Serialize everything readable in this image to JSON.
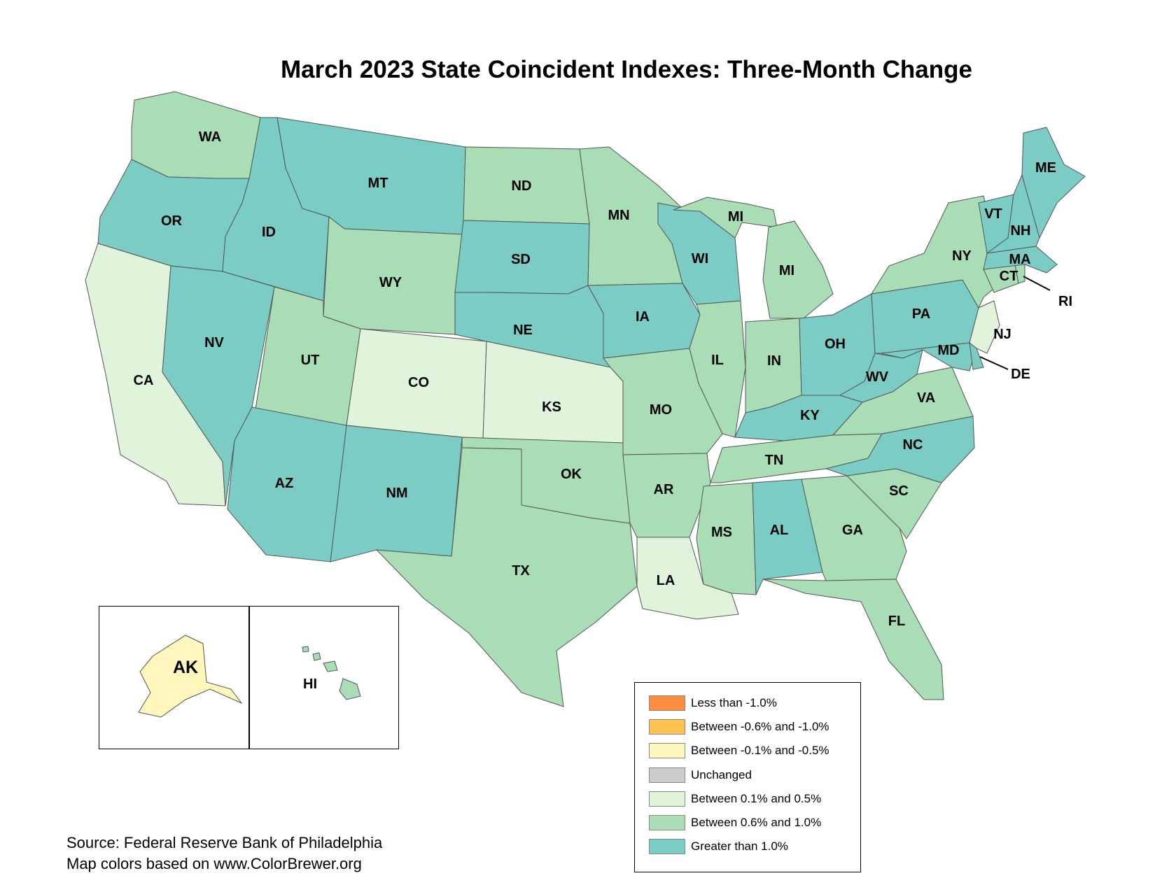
{
  "title": "March 2023 State Coincident Indexes: Three-Month Change",
  "colors": {
    "lt_neg1": "#fd8d3c",
    "neg06_neg1": "#fec44f",
    "neg01_neg05": "#fff7bc",
    "unchanged": "#cccccc",
    "p01_p05": "#e0f3db",
    "p06_p1": "#a8ddb5",
    "gt1": "#7bccc4"
  },
  "legend": [
    {
      "key": "lt_neg1",
      "label": "Less than -1.0%"
    },
    {
      "key": "neg06_neg1",
      "label": "Between -0.6% and -1.0%"
    },
    {
      "key": "neg01_neg05",
      "label": "Between -0.1% and -0.5%"
    },
    {
      "key": "unchanged",
      "label": "Unchanged"
    },
    {
      "key": "p01_p05",
      "label": "Between 0.1% and 0.5%"
    },
    {
      "key": "p06_p1",
      "label": "Between 0.6% and 1.0%"
    },
    {
      "key": "gt1",
      "label": "Greater than 1.0%"
    }
  ],
  "states": {
    "WA": "p06_p1",
    "OR": "gt1",
    "CA": "p01_p05",
    "ID": "gt1",
    "NV": "gt1",
    "MT": "gt1",
    "WY": "p06_p1",
    "UT": "p06_p1",
    "AZ": "gt1",
    "CO": "p01_p05",
    "NM": "gt1",
    "ND": "p06_p1",
    "SD": "gt1",
    "NE": "gt1",
    "KS": "p01_p05",
    "OK": "p06_p1",
    "TX": "p06_p1",
    "MN": "p06_p1",
    "IA": "gt1",
    "MO": "p06_p1",
    "AR": "p06_p1",
    "LA": "p01_p05",
    "WI": "gt1",
    "IL": "p06_p1",
    "MI": "p06_p1",
    "IN": "p06_p1",
    "OH": "gt1",
    "KY": "gt1",
    "TN": "p06_p1",
    "MS": "p06_p1",
    "AL": "gt1",
    "GA": "p06_p1",
    "FL": "p06_p1",
    "SC": "p06_p1",
    "NC": "gt1",
    "VA": "p06_p1",
    "WV": "gt1",
    "PA": "gt1",
    "NY": "p06_p1",
    "MD": "gt1",
    "DE": "gt1",
    "NJ": "p01_p05",
    "CT": "p06_p1",
    "RI": "p06_p1",
    "MA": "gt1",
    "VT": "gt1",
    "NH": "gt1",
    "ME": "gt1",
    "AK": "neg01_neg05",
    "HI": "p06_p1"
  },
  "source_lines": [
    "Source: Federal Reserve Bank of Philadelphia",
    "Map colors based on www.ColorBrewer.org"
  ]
}
